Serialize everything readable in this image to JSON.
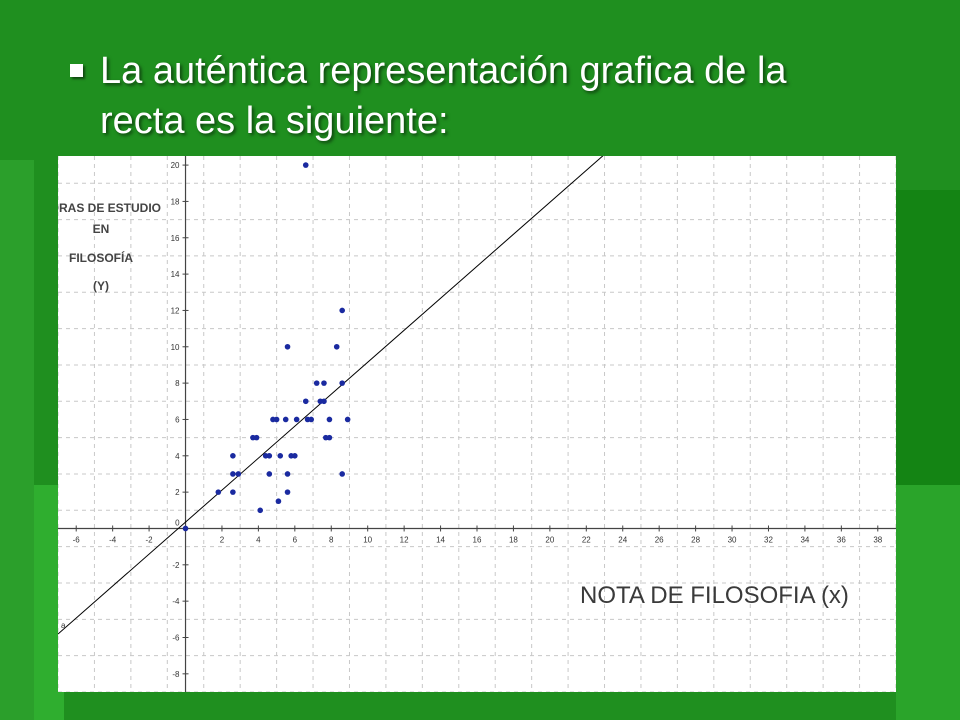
{
  "slide": {
    "title_line1": "La  auténtica representación grafica de la",
    "title_line2": "recta es la siguiente:"
  },
  "colors": {
    "background": "#1f8f1f",
    "point": "#1a2aa0",
    "line": "#000000",
    "grid": "#c8c8c8"
  },
  "chart_data": {
    "type": "scatter",
    "ylabel_lines": [
      "HORAS DE ESTUDIO",
      "EN",
      "FILOSOFÍA",
      "(Y)"
    ],
    "xlabel": "NOTA DE FILOSOFIA (x)",
    "xlim": [
      -7,
      39
    ],
    "ylim": [
      -9,
      20.5
    ],
    "x_ticks": [
      -6,
      -4,
      -2,
      2,
      4,
      6,
      8,
      10,
      12,
      14,
      16,
      18,
      20,
      22,
      24,
      26,
      28,
      30,
      32,
      34,
      36,
      38
    ],
    "y_ticks": [
      -8,
      -6,
      -4,
      -2,
      2,
      4,
      6,
      8,
      10,
      12,
      14,
      16,
      18,
      20
    ],
    "origin_label": "0",
    "grid": true,
    "points": [
      [
        0,
        0
      ],
      [
        1.8,
        2
      ],
      [
        2.6,
        2
      ],
      [
        2.6,
        3
      ],
      [
        2.6,
        4
      ],
      [
        2.9,
        3
      ],
      [
        3.7,
        5
      ],
      [
        3.9,
        5
      ],
      [
        4.1,
        1
      ],
      [
        4.4,
        4
      ],
      [
        4.6,
        4
      ],
      [
        4.6,
        3
      ],
      [
        4.8,
        6
      ],
      [
        5.0,
        6
      ],
      [
        5.1,
        1.5
      ],
      [
        5.2,
        4
      ],
      [
        5.5,
        6
      ],
      [
        5.6,
        10
      ],
      [
        5.6,
        3
      ],
      [
        5.6,
        2
      ],
      [
        5.8,
        4
      ],
      [
        6.0,
        4
      ],
      [
        6.1,
        6
      ],
      [
        6.6,
        20
      ],
      [
        6.6,
        7
      ],
      [
        6.7,
        6
      ],
      [
        6.9,
        6
      ],
      [
        7.2,
        8
      ],
      [
        7.4,
        7
      ],
      [
        7.6,
        7
      ],
      [
        7.6,
        8
      ],
      [
        7.7,
        5
      ],
      [
        7.9,
        6
      ],
      [
        7.9,
        5
      ],
      [
        8.3,
        10
      ],
      [
        8.6,
        12
      ],
      [
        8.6,
        8
      ],
      [
        8.6,
        3
      ],
      [
        8.9,
        6
      ]
    ],
    "line": {
      "label": "a",
      "slope": 0.88,
      "intercept": 0.35
    }
  }
}
